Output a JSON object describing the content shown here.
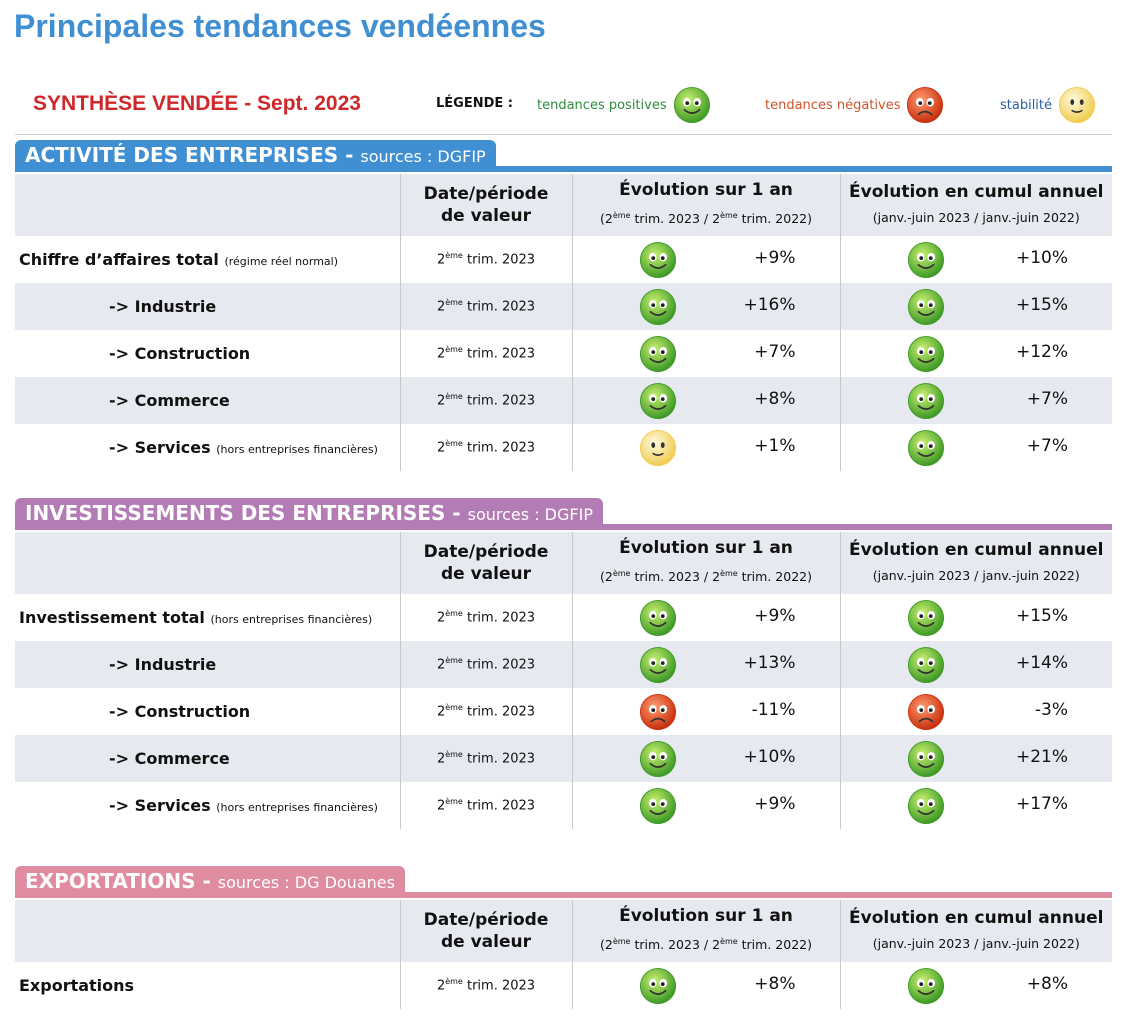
{
  "header": {
    "title": "Principales tendances vendéennes"
  },
  "synthesis": {
    "title": "SYNTHÈSE VENDÉE - Sept. 2023",
    "legend_label": "LÉGENDE :",
    "legend": [
      "tendances positives",
      "tendances négatives",
      "stabilité"
    ]
  },
  "sections": [
    {
      "title": "ACTIVITÉ DES ENTREPRISES -",
      "source": "sources : DGFIP",
      "columns": {
        "date": [
          "Date/période",
          "de valeur"
        ],
        "evo_year": "Évolution sur 1 an",
        "evo_year_sub": [
          "(2",
          "ème",
          " trim. 2023 / 2",
          "ème",
          " trim. 2022)"
        ],
        "evo_cumul": "Évolution en cumul annuel",
        "evo_cumul_sub": "(janv.-juin 2023 / janv.-juin 2022)"
      },
      "rows": [
        {
          "label": "Chiffre d’affaires total",
          "note": "(régime réel normal)",
          "date": [
            "2",
            "ème",
            " trim. 2023"
          ],
          "evo_year": "+9%",
          "evo_cumul": "+10%"
        },
        {
          "label": "-> Industrie",
          "date": [
            "2",
            "ème",
            " trim. 2023"
          ],
          "evo_year": "+16%",
          "evo_cumul": "+15%"
        },
        {
          "label": "-> Construction",
          "date": [
            "2",
            "ème",
            " trim. 2023"
          ],
          "evo_year": "+7%",
          "evo_cumul": "+12%"
        },
        {
          "label": "-> Commerce",
          "date": [
            "2",
            "ème",
            " trim. 2023"
          ],
          "evo_year": "+8%",
          "evo_cumul": "+7%"
        },
        {
          "label": "-> Services",
          "note": "(hors entreprises financières)",
          "date": [
            "2",
            "ème",
            " trim. 2023"
          ],
          "evo_year": "+1%",
          "evo_cumul": "+7%"
        }
      ]
    },
    {
      "title": "INVESTISSEMENTS DES ENTREPRISES -",
      "source": "sources : DGFIP",
      "columns": {
        "date": [
          "Date/période",
          "de valeur"
        ],
        "evo_year": "Évolution sur 1 an",
        "evo_year_sub": [
          "(2",
          "ème",
          " trim. 2023 / 2",
          "ème",
          " trim. 2022)"
        ],
        "evo_cumul": "Évolution en cumul annuel",
        "evo_cumul_sub": "(janv.-juin 2023 / janv.-juin 2022)"
      },
      "rows": [
        {
          "label": "Investissement total",
          "note": "(hors entreprises financières)",
          "date": [
            "2",
            "ème",
            " trim. 2023"
          ],
          "evo_year": "+9%",
          "evo_cumul": "+15%"
        },
        {
          "label": "-> Industrie",
          "date": [
            "2",
            "ème",
            " trim. 2023"
          ],
          "evo_year": "+13%",
          "evo_cumul": "+14%"
        },
        {
          "label": "-> Construction",
          "date": [
            "2",
            "ème",
            " trim. 2023"
          ],
          "evo_year": "-11%",
          "evo_cumul": "-3%"
        },
        {
          "label": "-> Commerce",
          "date": [
            "2",
            "ème",
            " trim. 2023"
          ],
          "evo_year": "+10%",
          "evo_cumul": "+21%"
        },
        {
          "label": "-> Services",
          "note": "(hors entreprises financières)",
          "date": [
            "2",
            "ème",
            " trim. 2023"
          ],
          "evo_year": "+9%",
          "evo_cumul": "+17%"
        }
      ]
    },
    {
      "title": "EXPORTATIONS -",
      "source": "sources : DG Douanes",
      "columns": {
        "date": [
          "Date/période",
          "de valeur"
        ],
        "evo_year": "Évolution sur 1 an",
        "evo_year_sub": [
          "(2",
          "ème",
          " trim. 2023 / 2",
          "ème",
          " trim. 2022)"
        ],
        "evo_cumul": "Évolution en cumul annuel",
        "evo_cumul_sub": "(janv.-juin 2023 / janv.-juin 2022)"
      },
      "rows": [
        {
          "label": "Exportations",
          "date": [
            "2",
            "ème",
            " trim. 2023"
          ],
          "evo_year": "+8%",
          "evo_cumul": "+8%"
        }
      ]
    }
  ]
}
